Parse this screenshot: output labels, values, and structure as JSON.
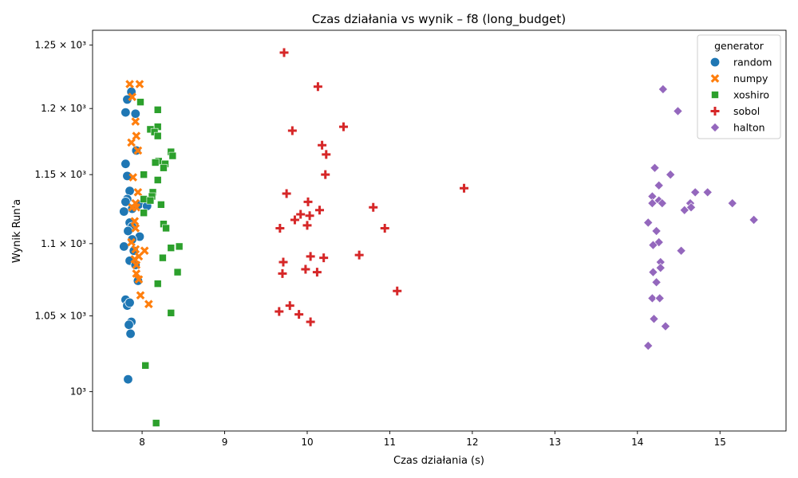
{
  "chart_data": {
    "type": "scatter",
    "title": "Czas działania vs wynik – f8 (long_budget)",
    "xlabel": "Czas działania (s)",
    "ylabel": "Wynik Run'a",
    "xlim": [
      7.4,
      15.8
    ],
    "ylim": [
      975,
      1262
    ],
    "y_scale": "log",
    "x_ticks": [
      8,
      9,
      10,
      11,
      12,
      13,
      14,
      15
    ],
    "x_tick_labels": [
      "8",
      "9",
      "10",
      "11",
      "12",
      "13",
      "14",
      "15"
    ],
    "y_ticks": [
      1000,
      1050,
      1100,
      1150,
      1200,
      1250
    ],
    "y_tick_labels": [
      "10³",
      "1.05 × 10³",
      "1.1 × 10³",
      "1.15 × 10³",
      "1.2 × 10³",
      "1.25 × 10³"
    ],
    "legend": {
      "title": "generator",
      "position": "upper right"
    },
    "series": [
      {
        "name": "random",
        "marker": "circle",
        "color": "#1f77b4",
        "points": [
          [
            7.87,
            1213
          ],
          [
            7.82,
            1207
          ],
          [
            7.8,
            1197
          ],
          [
            7.92,
            1196
          ],
          [
            7.93,
            1168
          ],
          [
            7.8,
            1158
          ],
          [
            7.82,
            1149
          ],
          [
            7.85,
            1138
          ],
          [
            7.82,
            1132
          ],
          [
            7.8,
            1130
          ],
          [
            7.88,
            1125
          ],
          [
            7.78,
            1123
          ],
          [
            7.96,
            1128
          ],
          [
            8.06,
            1127
          ],
          [
            7.85,
            1115
          ],
          [
            7.88,
            1112
          ],
          [
            7.83,
            1109
          ],
          [
            7.97,
            1105
          ],
          [
            7.88,
            1103
          ],
          [
            7.78,
            1098
          ],
          [
            7.9,
            1095
          ],
          [
            7.85,
            1088
          ],
          [
            7.92,
            1085
          ],
          [
            7.95,
            1074
          ],
          [
            7.8,
            1061
          ],
          [
            7.82,
            1057
          ],
          [
            7.85,
            1059
          ],
          [
            7.87,
            1046
          ],
          [
            7.84,
            1044
          ],
          [
            7.86,
            1038
          ],
          [
            7.83,
            1008
          ]
        ]
      },
      {
        "name": "numpy",
        "marker": "x",
        "color": "#ff7f0e",
        "points": [
          [
            7.85,
            1219
          ],
          [
            7.97,
            1219
          ],
          [
            7.88,
            1209
          ],
          [
            7.92,
            1190
          ],
          [
            7.93,
            1179
          ],
          [
            7.87,
            1174
          ],
          [
            7.95,
            1168
          ],
          [
            7.89,
            1148
          ],
          [
            7.95,
            1137
          ],
          [
            7.92,
            1129
          ],
          [
            7.88,
            1126
          ],
          [
            7.93,
            1126
          ],
          [
            7.91,
            1116
          ],
          [
            7.92,
            1111
          ],
          [
            7.87,
            1101
          ],
          [
            7.92,
            1096
          ],
          [
            8.03,
            1095
          ],
          [
            7.96,
            1091
          ],
          [
            7.91,
            1089
          ],
          [
            7.93,
            1085
          ],
          [
            7.93,
            1079
          ],
          [
            7.96,
            1075
          ],
          [
            7.98,
            1064
          ],
          [
            8.08,
            1058
          ]
        ]
      },
      {
        "name": "xoshiro",
        "marker": "square",
        "color": "#2ca02c",
        "points": [
          [
            7.98,
            1205
          ],
          [
            8.19,
            1199
          ],
          [
            8.19,
            1186
          ],
          [
            8.1,
            1184
          ],
          [
            8.15,
            1182
          ],
          [
            8.19,
            1179
          ],
          [
            8.35,
            1167
          ],
          [
            8.37,
            1164
          ],
          [
            8.2,
            1160
          ],
          [
            8.16,
            1159
          ],
          [
            8.28,
            1158
          ],
          [
            8.26,
            1155
          ],
          [
            8.02,
            1150
          ],
          [
            8.19,
            1146
          ],
          [
            8.13,
            1137
          ],
          [
            8.12,
            1134
          ],
          [
            8.02,
            1132
          ],
          [
            8.1,
            1131
          ],
          [
            8.23,
            1128
          ],
          [
            8.02,
            1122
          ],
          [
            8.26,
            1114
          ],
          [
            8.29,
            1111
          ],
          [
            8.35,
            1097
          ],
          [
            8.45,
            1098
          ],
          [
            8.25,
            1090
          ],
          [
            8.43,
            1080
          ],
          [
            8.19,
            1072
          ],
          [
            8.35,
            1052
          ],
          [
            8.04,
            1017
          ],
          [
            8.17,
            980
          ]
        ]
      },
      {
        "name": "sobol",
        "marker": "plus",
        "color": "#d62728",
        "points": [
          [
            9.72,
            1244
          ],
          [
            10.13,
            1217
          ],
          [
            10.44,
            1186
          ],
          [
            9.82,
            1183
          ],
          [
            10.18,
            1172
          ],
          [
            10.23,
            1165
          ],
          [
            10.22,
            1150
          ],
          [
            11.9,
            1140
          ],
          [
            9.75,
            1136
          ],
          [
            10.01,
            1130
          ],
          [
            10.8,
            1126
          ],
          [
            10.15,
            1124
          ],
          [
            9.92,
            1121
          ],
          [
            10.03,
            1120
          ],
          [
            9.85,
            1117
          ],
          [
            10.0,
            1113
          ],
          [
            9.67,
            1111
          ],
          [
            10.94,
            1111
          ],
          [
            10.63,
            1092
          ],
          [
            10.04,
            1091
          ],
          [
            10.2,
            1090
          ],
          [
            9.71,
            1087
          ],
          [
            9.98,
            1082
          ],
          [
            10.12,
            1080
          ],
          [
            9.7,
            1079
          ],
          [
            11.09,
            1067
          ],
          [
            9.79,
            1057
          ],
          [
            9.66,
            1053
          ],
          [
            9.9,
            1051
          ],
          [
            10.04,
            1046
          ]
        ]
      },
      {
        "name": "halton",
        "marker": "diamond",
        "color": "#9467bd",
        "points": [
          [
            14.31,
            1215
          ],
          [
            14.49,
            1198
          ],
          [
            14.21,
            1155
          ],
          [
            14.4,
            1150
          ],
          [
            14.26,
            1142
          ],
          [
            14.7,
            1137
          ],
          [
            14.85,
            1137
          ],
          [
            14.18,
            1134
          ],
          [
            14.26,
            1131
          ],
          [
            14.3,
            1129
          ],
          [
            14.18,
            1129
          ],
          [
            14.64,
            1129
          ],
          [
            15.15,
            1129
          ],
          [
            14.57,
            1124
          ],
          [
            14.65,
            1126
          ],
          [
            15.41,
            1117
          ],
          [
            14.13,
            1115
          ],
          [
            14.23,
            1109
          ],
          [
            14.26,
            1101
          ],
          [
            14.19,
            1099
          ],
          [
            14.53,
            1095
          ],
          [
            14.28,
            1087
          ],
          [
            14.28,
            1083
          ],
          [
            14.19,
            1080
          ],
          [
            14.23,
            1073
          ],
          [
            14.18,
            1062
          ],
          [
            14.27,
            1062
          ],
          [
            14.2,
            1048
          ],
          [
            14.34,
            1043
          ],
          [
            14.13,
            1030
          ]
        ]
      }
    ]
  }
}
